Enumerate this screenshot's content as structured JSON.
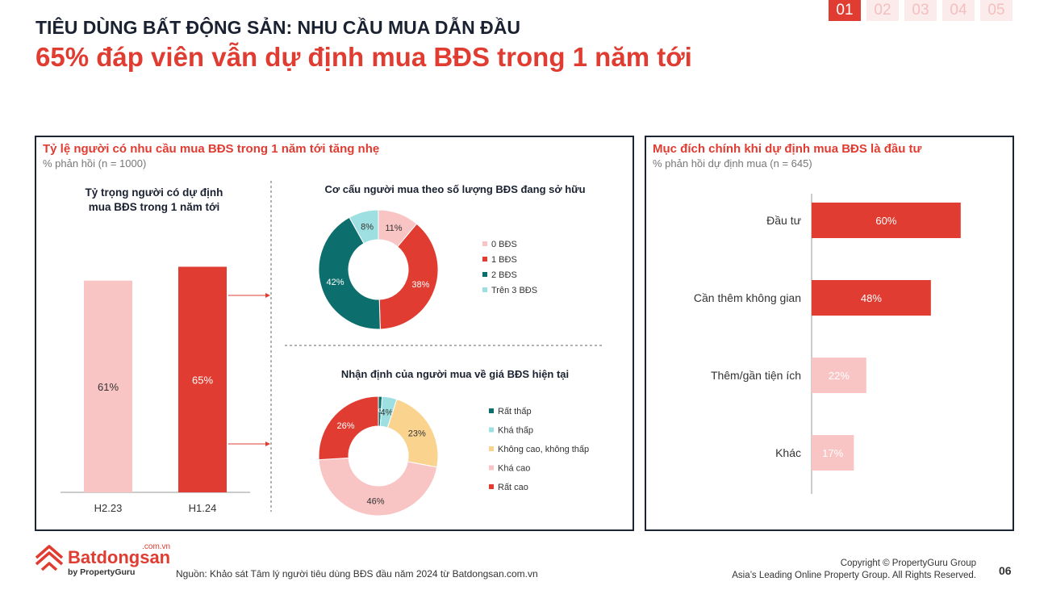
{
  "pagination": {
    "tabs": [
      "01",
      "02",
      "03",
      "04",
      "05"
    ],
    "active": 0
  },
  "header": {
    "kicker": "TIÊU DÙNG BẤT ĐỘNG SẢN: NHU CẦU MUA DẪN ĐẦU",
    "headline": "65% đáp viên vẫn dự định mua BĐS trong 1 năm tới"
  },
  "left_panel": {
    "title": "Tỷ lệ người có nhu cầu mua BĐS trong 1 năm tới tăng nhẹ",
    "subtitle": "% phản hồi (n = 1000)"
  },
  "right_panel": {
    "title": "Mục đích chính khi dự định mua BĐS là đầu tư",
    "subtitle": "% phản hồi dự định mua (n = 645)"
  },
  "colors": {
    "red": "#e03c31",
    "light_pink": "#f9c4c4",
    "teal": "#0d6e6e",
    "light_teal": "#9ee0e2",
    "yellow": "#fad38f",
    "navy": "#1d2533"
  },
  "chart_data": [
    {
      "type": "bar",
      "title_lines": [
        "Tỷ trọng người có dự định",
        "mua BĐS trong 1 năm tới"
      ],
      "categories": [
        "H2.23",
        "H1.24"
      ],
      "values": [
        61,
        65
      ],
      "labels": [
        "61%",
        "65%"
      ],
      "colors": [
        "#f9c4c4",
        "#e03c31"
      ],
      "ylim": [
        0,
        100
      ]
    },
    {
      "type": "pie",
      "style": "donut",
      "title": "Cơ cấu người mua theo số lượng BĐS đang sở hữu",
      "categories": [
        "0 BĐS",
        "1 BĐS",
        "2 BĐS",
        "Trên 3 BĐS"
      ],
      "values": [
        11,
        38,
        42,
        8
      ],
      "labels": [
        "11%",
        "38%",
        "42%",
        "8%"
      ],
      "colors": [
        "#f9c4c4",
        "#e03c31",
        "#0d6e6e",
        "#9ee0e2"
      ],
      "legend_position": "right"
    },
    {
      "type": "pie",
      "style": "donut",
      "title": "Nhận định của người mua về giá BĐS hiện tại",
      "categories": [
        "Rất thấp",
        "Khá thấp",
        "Không cao, không thấp",
        "Khá cao",
        "Rất cao"
      ],
      "values": [
        1,
        4,
        23,
        46,
        26
      ],
      "labels": [
        "1%",
        "4%",
        "23%",
        "46%",
        "26%"
      ],
      "colors": [
        "#0d6e6e",
        "#9ee0e2",
        "#fad38f",
        "#f9c4c4",
        "#e03c31"
      ],
      "legend_position": "right"
    },
    {
      "type": "bar",
      "orientation": "horizontal",
      "title": "Mục đích chính khi dự định mua BĐS là đầu tư",
      "categories": [
        "Đầu tư",
        "Cần thêm không gian",
        "Thêm/gần tiện ích",
        "Khác"
      ],
      "values": [
        60,
        48,
        22,
        17
      ],
      "labels": [
        "60%",
        "48%",
        "22%",
        "17%"
      ],
      "colors": [
        "#e03c31",
        "#e03c31",
        "#f9c4c4",
        "#f9c4c4"
      ],
      "xlim": [
        0,
        100
      ]
    }
  ],
  "footer": {
    "logo_domain": ".com.vn",
    "logo_name": "Batdongsan",
    "logo_by": "by PropertyGuru",
    "source": "Nguồn: Khảo sát Tâm lý người tiêu dùng BĐS đầu năm 2024 từ Batdongsan.com.vn",
    "copyright_line1": "Copyright © PropertyGuru Group",
    "copyright_line2": "Asia’s Leading Online Property Group. All Rights Reserved.",
    "page_number": "06"
  }
}
